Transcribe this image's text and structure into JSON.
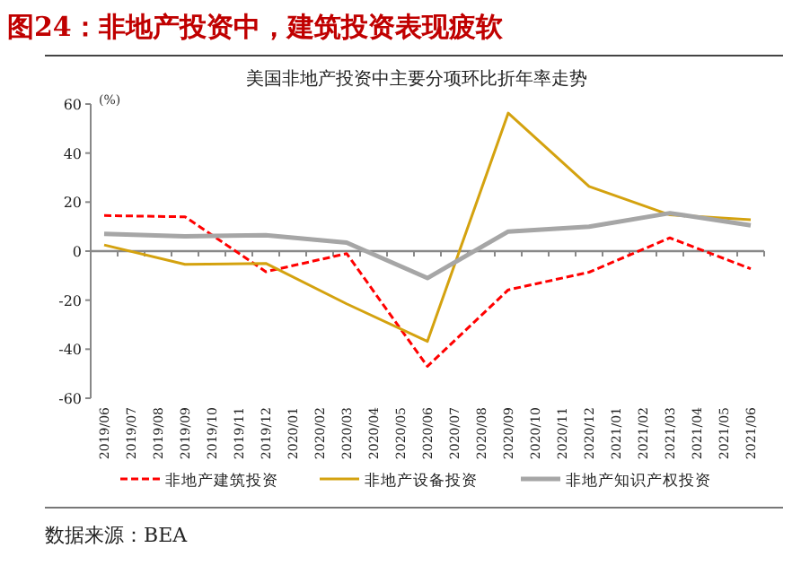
{
  "chart_data": {
    "type": "line",
    "title": "图24：非地产投资中，建筑投资表现疲软",
    "subtitle": "美国非地产投资中主要分项环比折年率走势",
    "ylabel": "(%)",
    "x": [
      "2019-06",
      "2019-09",
      "2019-12",
      "2020-03",
      "2020-06",
      "2020-09",
      "2020-12",
      "2021-03",
      "2021-06"
    ],
    "series": [
      {
        "name": "非地产建筑投资",
        "color": "#ff0000",
        "line_style": "dashed",
        "values": [
          14.5,
          14,
          -8.4,
          -1,
          -47,
          -15.8,
          -8.6,
          5.4,
          -7.2
        ]
      },
      {
        "name": "非地产设备投资",
        "color": "#d4a20f",
        "line_style": "solid",
        "values": [
          2.5,
          -5.4,
          -5,
          -21.5,
          -36.8,
          56.3,
          26.4,
          14.8,
          12.8
        ]
      },
      {
        "name": "非地产知识产权投资",
        "color": "#a6a6a6",
        "line_style": "solid",
        "values": [
          7,
          6,
          6.5,
          3.5,
          -11,
          8,
          10,
          15.5,
          10.5
        ]
      }
    ],
    "xlim": [
      "2019-06",
      "2021-06"
    ],
    "xticks": [
      {
        "value": "2019-06",
        "label": "2019/06"
      },
      {
        "value": "2019-07",
        "label": "2019/07"
      },
      {
        "value": "2019-08",
        "label": "2019/08"
      },
      {
        "value": "2019-09",
        "label": "2019/09"
      },
      {
        "value": "2019-10",
        "label": "2019/10"
      },
      {
        "value": "2019-11",
        "label": "2019/11"
      },
      {
        "value": "2019-12",
        "label": "2019/12"
      },
      {
        "value": "2020-01",
        "label": "2020/01"
      },
      {
        "value": "2020-02",
        "label": "2020/02"
      },
      {
        "value": "2020-03",
        "label": "2020/03"
      },
      {
        "value": "2020-04",
        "label": "2020/04"
      },
      {
        "value": "2020-05",
        "label": "2020/05"
      },
      {
        "value": "2020-06",
        "label": "2020/06"
      },
      {
        "value": "2020-07",
        "label": "2020/07"
      },
      {
        "value": "2020-08",
        "label": "2020/08"
      },
      {
        "value": "2020-09",
        "label": "2020/09"
      },
      {
        "value": "2020-10",
        "label": "2020/10"
      },
      {
        "value": "2020-11",
        "label": "2020/11"
      },
      {
        "value": "2020-12",
        "label": "2020/12"
      },
      {
        "value": "2021-01",
        "label": "2021/01"
      },
      {
        "value": "2021-02",
        "label": "2021/02"
      },
      {
        "value": "2021-03",
        "label": "2021/03"
      },
      {
        "value": "2021-04",
        "label": "2021/04"
      },
      {
        "value": "2021-05",
        "label": "2021/05"
      },
      {
        "value": "2021-06",
        "label": "2021/06"
      }
    ],
    "ylim": [
      -60,
      60
    ],
    "yticks": [
      -60,
      -40,
      -20,
      0,
      20,
      40,
      60
    ],
    "legend": "bottom",
    "marker": "none",
    "annotations": [
      "数据来源：BEA"
    ]
  }
}
